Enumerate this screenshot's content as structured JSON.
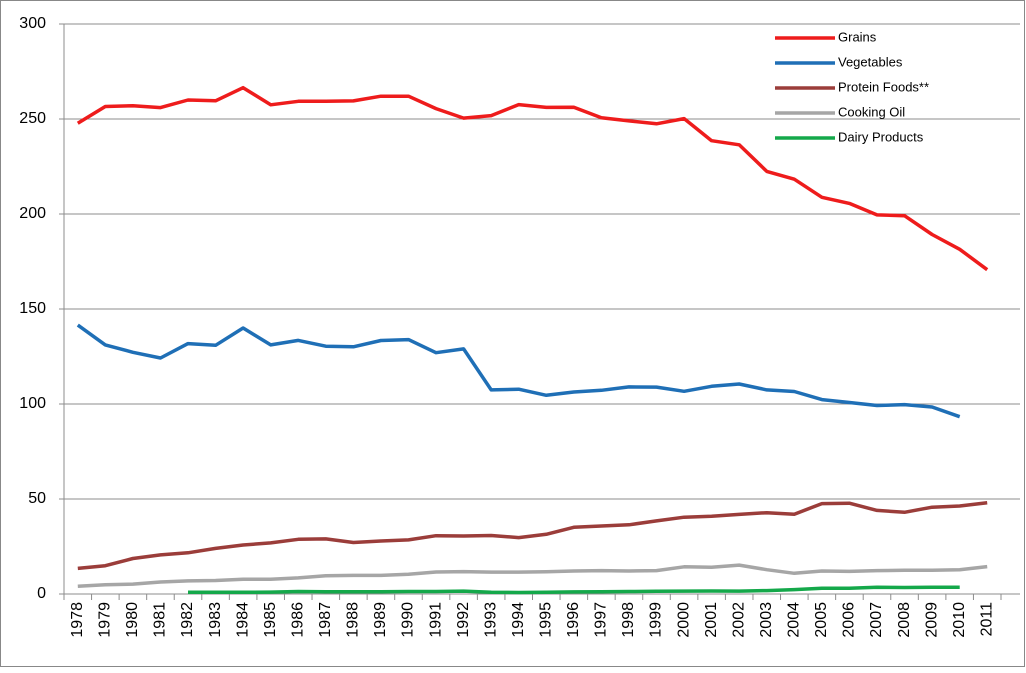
{
  "chart_data": {
    "type": "line",
    "categories": [
      "1978",
      "1979",
      "1980",
      "1981",
      "1982",
      "1983",
      "1984",
      "1985",
      "1986",
      "1987",
      "1988",
      "1989",
      "1990",
      "1991",
      "1992",
      "1993",
      "1994",
      "1995",
      "1996",
      "1997",
      "1998",
      "1999",
      "2000",
      "2001",
      "2002",
      "2003",
      "2004",
      "2005",
      "2006",
      "2007",
      "2008",
      "2009",
      "2010",
      "2011"
    ],
    "series": [
      {
        "name": "Grains",
        "color": "#ee1c1c",
        "values": [
          247.8,
          256.6,
          257,
          256,
          260,
          259.6,
          266.5,
          257.5,
          259.3,
          259.3,
          259.5,
          262,
          262,
          255.5,
          250.5,
          251.8,
          257.6,
          256.1,
          256.2,
          250.7,
          249,
          247.5,
          250.2,
          238.6,
          236.4,
          222.4,
          218.3,
          208.8,
          205.6,
          199.5,
          199.1,
          189.2,
          181.4,
          170.7
        ]
      },
      {
        "name": "Vegetables",
        "color": "#1f6fb6",
        "values": [
          141.5,
          131.1,
          127.2,
          124.2,
          131.8,
          130.9,
          140,
          131.1,
          133.5,
          130.4,
          130.1,
          133.4,
          133.9,
          127,
          129,
          107.4,
          107.8,
          104.6,
          106.3,
          107.2,
          109,
          108.9,
          106.7,
          109.3,
          110.5,
          107.4,
          106.6,
          102.3,
          100.8,
          99.2,
          99.7,
          98.4,
          93.3,
          null
        ]
      },
      {
        "name": "Protein Foods**",
        "color": "#9b3d3a",
        "values": [
          13.5,
          14.9,
          18.7,
          20.6,
          21.7,
          24,
          25.8,
          26.9,
          28.8,
          29,
          27.1,
          27.9,
          28.5,
          30.7,
          30.5,
          30.8,
          29.7,
          31.4,
          35.1,
          35.8,
          36.4,
          38.5,
          40.4,
          40.9,
          41.9,
          42.8,
          42,
          47.6,
          47.8,
          44,
          43,
          45.7,
          46.3,
          48
        ]
      },
      {
        "name": "Cooking Oil",
        "color": "#a6a6a6",
        "values": [
          4.1,
          4.9,
          5.2,
          6.3,
          6.9,
          7.1,
          7.8,
          7.8,
          8.5,
          9.6,
          9.8,
          9.8,
          10.4,
          11.6,
          11.8,
          11.5,
          11.5,
          11.7,
          12.1,
          12.3,
          12.1,
          12.3,
          14.3,
          14.1,
          15.2,
          12.8,
          10.9,
          12.1,
          11.9,
          12.3,
          12.5,
          12.5,
          12.8,
          14.4
        ]
      },
      {
        "name": "Dairy Products",
        "color": "#14a84a",
        "values": [
          null,
          null,
          null,
          null,
          0.9,
          0.9,
          0.9,
          1.0,
          1.3,
          1.2,
          1.2,
          1.2,
          1.3,
          1.3,
          1.5,
          0.9,
          0.8,
          0.9,
          1.1,
          1.2,
          1.3,
          1.4,
          1.5,
          1.6,
          1.5,
          1.8,
          2.3,
          3.0,
          3.0,
          3.6,
          3.4,
          3.6,
          3.6,
          null
        ]
      }
    ],
    "ylim": [
      0,
      300
    ],
    "yticks": [
      0,
      50,
      100,
      150,
      200,
      250,
      300
    ],
    "grid": true,
    "legend": "top-right"
  }
}
